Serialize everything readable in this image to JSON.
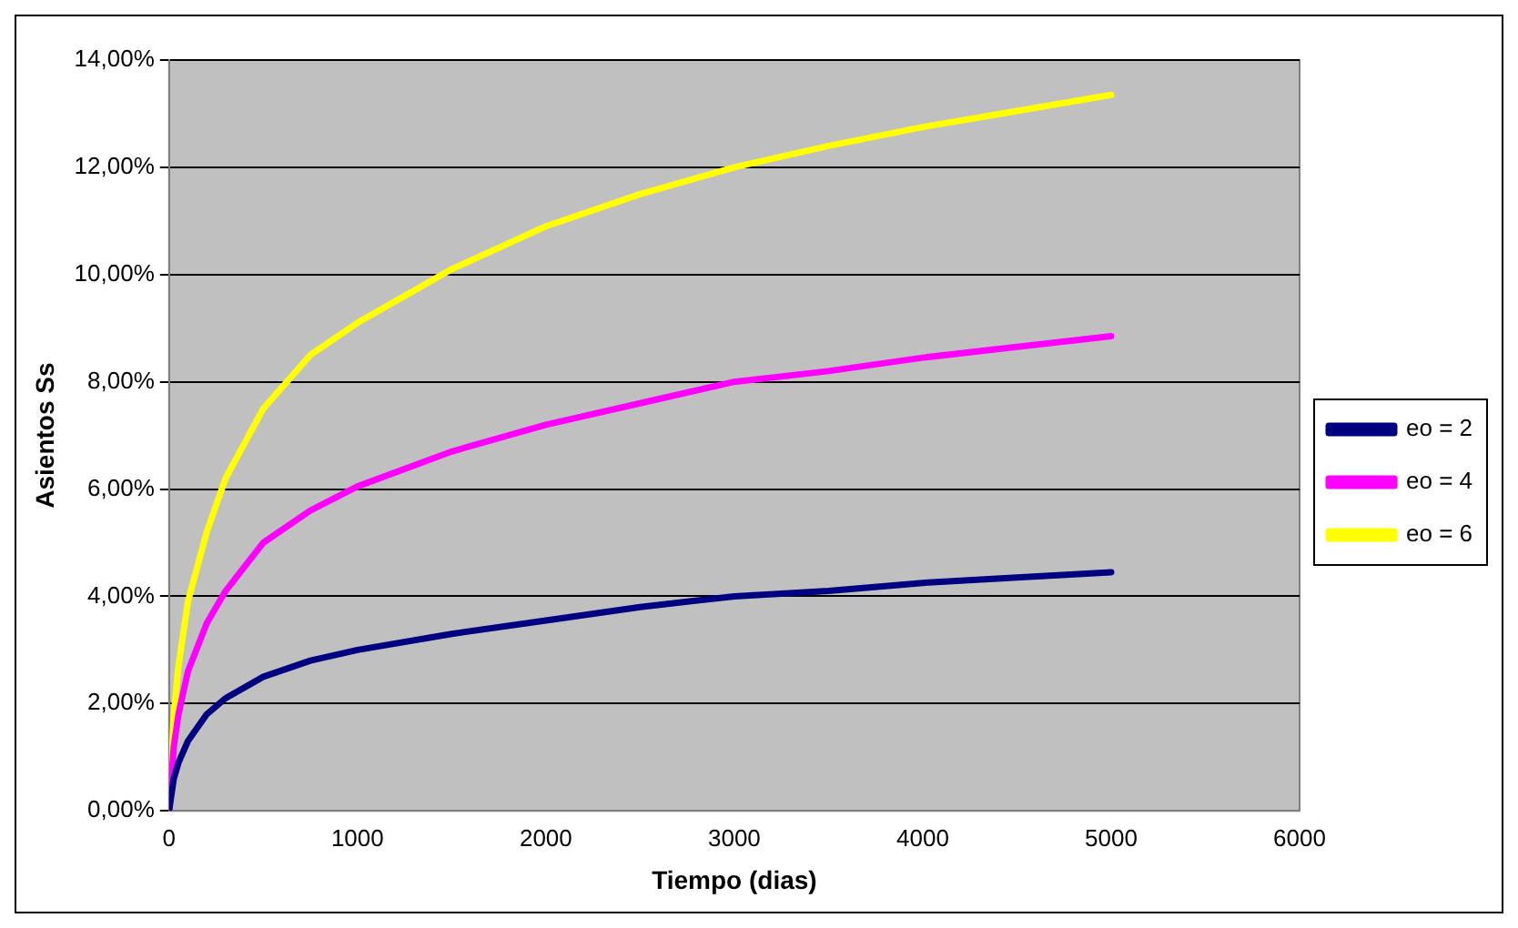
{
  "chart_data": {
    "type": "line",
    "xlabel": "Tiempo (dias)",
    "ylabel": "Asientos Ss",
    "xlim": [
      0,
      6000
    ],
    "xticks": [
      0,
      1000,
      2000,
      3000,
      4000,
      5000,
      6000
    ],
    "ylim": [
      0,
      14
    ],
    "yticks": [
      {
        "value": 0,
        "label": "0,00%"
      },
      {
        "value": 2,
        "label": "2,00%"
      },
      {
        "value": 4,
        "label": "4,00%"
      },
      {
        "value": 6,
        "label": "6,00%"
      },
      {
        "value": 8,
        "label": "8,00%"
      },
      {
        "value": 10,
        "label": "10,00%"
      },
      {
        "value": 12,
        "label": "12,00%"
      },
      {
        "value": 14,
        "label": "14,00%"
      }
    ],
    "grid": "y",
    "legend": "right",
    "marker": "none",
    "line_style": "solid",
    "x": [
      0,
      25,
      50,
      100,
      200,
      300,
      500,
      750,
      1000,
      1500,
      2000,
      2500,
      3000,
      3500,
      4000,
      4500,
      5000
    ],
    "series": [
      {
        "name": "eo = 2",
        "color": "#000080",
        "values": [
          0,
          0.6,
          0.9,
          1.3,
          1.8,
          2.1,
          2.5,
          2.8,
          3.0,
          3.3,
          3.55,
          3.8,
          4.0,
          4.1,
          4.25,
          4.35,
          4.45
        ]
      },
      {
        "name": "eo = 4",
        "color": "#ff00ff",
        "values": [
          0,
          1.2,
          1.8,
          2.6,
          3.5,
          4.1,
          5.0,
          5.6,
          6.05,
          6.7,
          7.2,
          7.6,
          8.0,
          8.2,
          8.45,
          8.65,
          8.85
        ]
      },
      {
        "name": "eo = 6",
        "color": "#ffff00",
        "values": [
          0,
          1.8,
          2.7,
          3.9,
          5.2,
          6.2,
          7.5,
          8.5,
          9.1,
          10.1,
          10.9,
          11.5,
          12.0,
          12.4,
          12.75,
          13.05,
          13.35
        ]
      }
    ]
  }
}
